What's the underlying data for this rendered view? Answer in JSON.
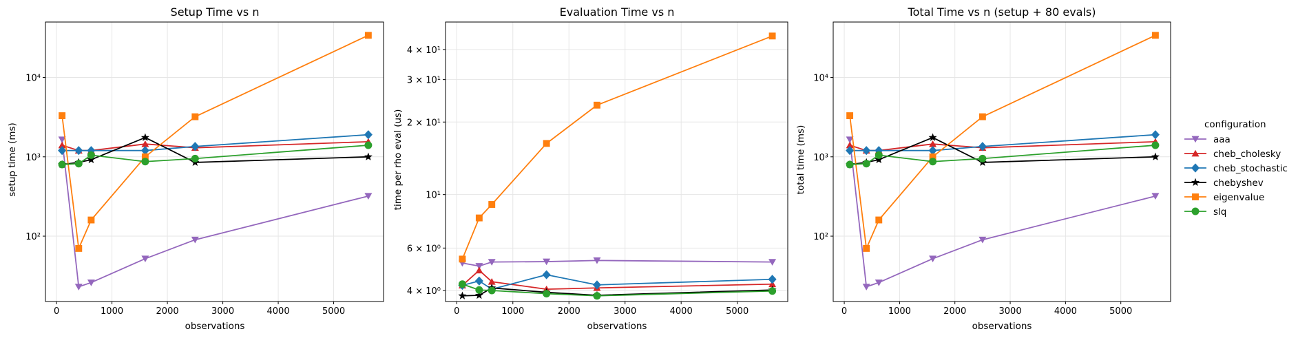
{
  "legend": {
    "title": "configuration",
    "placement": "right"
  },
  "colors": {
    "aaa": "#9467bd",
    "cheb_cholesky": "#d62728",
    "cheb_stochastic": "#1f77b4",
    "chebyshev": "#000000",
    "eigenvalue": "#ff7f0e",
    "slq": "#2ca02c"
  },
  "markers": {
    "aaa": "triangle-down",
    "cheb_cholesky": "triangle-up",
    "cheb_stochastic": "diamond",
    "chebyshev": "star",
    "eigenvalue": "square",
    "slq": "circle"
  },
  "chart_data": [
    {
      "type": "line",
      "title": "Setup Time vs n",
      "xlabel": "observations",
      "ylabel": "setup time (ms)",
      "yscale": "log",
      "xlim": [
        -200,
        5900
      ],
      "ylim": [
        15,
        50000
      ],
      "xticks": [
        0,
        1000,
        2000,
        3000,
        4000,
        5000
      ],
      "xtick_labels": [
        "0",
        "1000",
        "2000",
        "3000",
        "4000",
        "5000"
      ],
      "yticks": [
        100,
        1000,
        10000
      ],
      "ytick_labels": [
        "10²",
        "10³",
        "10⁴"
      ],
      "grid": true,
      "series": [
        {
          "name": "aaa",
          "x": [
            100,
            400,
            625,
            1600,
            2500,
            5625
          ],
          "y": [
            1650,
            23,
            26,
            52,
            90,
            320
          ]
        },
        {
          "name": "cheb_cholesky",
          "x": [
            100,
            400,
            625,
            1600,
            2500,
            5625
          ],
          "y": [
            1400,
            1200,
            1200,
            1450,
            1300,
            1550
          ]
        },
        {
          "name": "cheb_stochastic",
          "x": [
            100,
            400,
            625,
            1600,
            2500,
            5625
          ],
          "y": [
            1200,
            1200,
            1200,
            1200,
            1350,
            1900
          ]
        },
        {
          "name": "chebyshev",
          "x": [
            100,
            400,
            625,
            1600,
            2500,
            5625
          ],
          "y": [
            800,
            850,
            920,
            1750,
            850,
            1000
          ]
        },
        {
          "name": "eigenvalue",
          "x": [
            100,
            400,
            625,
            1600,
            2500,
            5625
          ],
          "y": [
            3300,
            70,
            160,
            1000,
            3200,
            34000
          ]
        },
        {
          "name": "slq",
          "x": [
            100,
            400,
            625,
            1600,
            2500,
            5625
          ],
          "y": [
            800,
            820,
            1050,
            870,
            950,
            1400
          ]
        }
      ]
    },
    {
      "type": "line",
      "title": "Evaluation Time vs n",
      "xlabel": "observations",
      "ylabel": "time per rho eval (us)",
      "yscale": "log",
      "xlim": [
        -200,
        5900
      ],
      "ylim": [
        3.6,
        52
      ],
      "xticks": [
        0,
        1000,
        2000,
        3000,
        4000,
        5000
      ],
      "xtick_labels": [
        "0",
        "1000",
        "2000",
        "3000",
        "4000",
        "5000"
      ],
      "yticks": [
        4,
        6,
        10,
        20,
        30,
        40
      ],
      "ytick_labels": [
        "4 × 10⁰",
        "6 × 10⁰",
        "10¹",
        "2 × 10¹",
        "3 × 10¹",
        "4 × 10¹"
      ],
      "grid": true,
      "series": [
        {
          "name": "aaa",
          "x": [
            100,
            400,
            625,
            1600,
            2500,
            5625
          ],
          "y": [
            5.2,
            5.05,
            5.25,
            5.27,
            5.33,
            5.25
          ]
        },
        {
          "name": "cheb_cholesky",
          "x": [
            100,
            400,
            625,
            1600,
            2500,
            5625
          ],
          "y": [
            4.2,
            4.85,
            4.35,
            4.05,
            4.1,
            4.25
          ]
        },
        {
          "name": "cheb_stochastic",
          "x": [
            100,
            400,
            625,
            1600,
            2500,
            5625
          ],
          "y": [
            4.2,
            4.38,
            4.05,
            4.65,
            4.22,
            4.45
          ]
        },
        {
          "name": "chebyshev",
          "x": [
            100,
            400,
            625,
            1600,
            2500,
            5625
          ],
          "y": [
            3.8,
            3.82,
            4.1,
            3.93,
            3.82,
            4.02
          ]
        },
        {
          "name": "eigenvalue",
          "x": [
            100,
            400,
            625,
            1600,
            2500,
            5625
          ],
          "y": [
            5.4,
            8.0,
            9.1,
            16.3,
            23.5,
            45.5
          ]
        },
        {
          "name": "slq",
          "x": [
            100,
            400,
            625,
            1600,
            2500,
            5625
          ],
          "y": [
            4.25,
            4.02,
            4.0,
            3.88,
            3.8,
            3.98
          ]
        }
      ]
    },
    {
      "type": "line",
      "title": "Total Time vs n (setup + 80 evals)",
      "xlabel": "observations",
      "ylabel": "total time (ms)",
      "yscale": "log",
      "xlim": [
        -200,
        5900
      ],
      "ylim": [
        15,
        50000
      ],
      "xticks": [
        0,
        1000,
        2000,
        3000,
        4000,
        5000
      ],
      "xtick_labels": [
        "0",
        "1000",
        "2000",
        "3000",
        "4000",
        "5000"
      ],
      "yticks": [
        100,
        1000,
        10000
      ],
      "ytick_labels": [
        "10²",
        "10³",
        "10⁴"
      ],
      "grid": true,
      "series": [
        {
          "name": "aaa",
          "x": [
            100,
            400,
            625,
            1600,
            2500,
            5625
          ],
          "y": [
            1650,
            23,
            26,
            52,
            90,
            320
          ]
        },
        {
          "name": "cheb_cholesky",
          "x": [
            100,
            400,
            625,
            1600,
            2500,
            5625
          ],
          "y": [
            1400,
            1200,
            1200,
            1450,
            1300,
            1550
          ]
        },
        {
          "name": "cheb_stochastic",
          "x": [
            100,
            400,
            625,
            1600,
            2500,
            5625
          ],
          "y": [
            1200,
            1200,
            1200,
            1200,
            1350,
            1900
          ]
        },
        {
          "name": "chebyshev",
          "x": [
            100,
            400,
            625,
            1600,
            2500,
            5625
          ],
          "y": [
            800,
            850,
            920,
            1750,
            850,
            1000
          ]
        },
        {
          "name": "eigenvalue",
          "x": [
            100,
            400,
            625,
            1600,
            2500,
            5625
          ],
          "y": [
            3300,
            70,
            160,
            1000,
            3200,
            34000
          ]
        },
        {
          "name": "slq",
          "x": [
            100,
            400,
            625,
            1600,
            2500,
            5625
          ],
          "y": [
            800,
            820,
            1050,
            870,
            950,
            1400
          ]
        }
      ]
    }
  ]
}
